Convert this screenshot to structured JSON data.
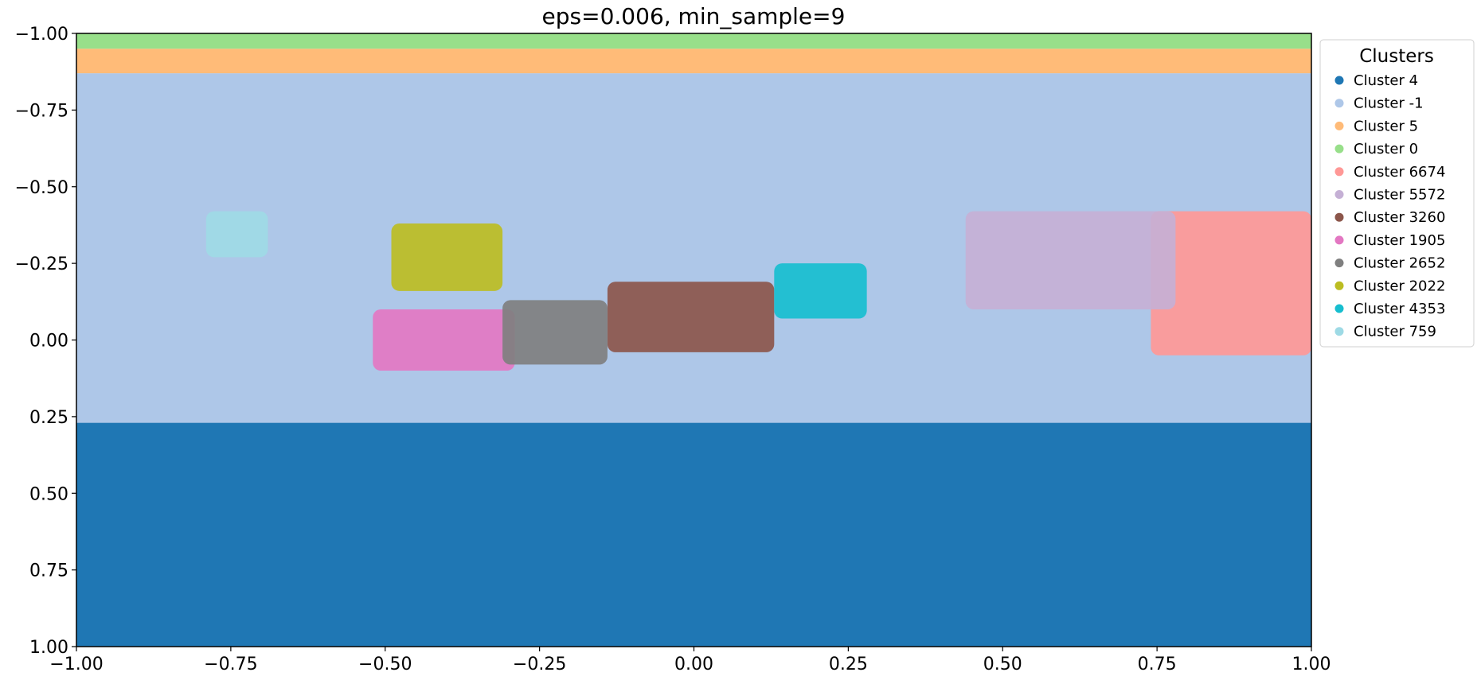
{
  "chart_data": {
    "type": "scatter",
    "title": "eps=0.006, min_sample=9",
    "xlabel": "",
    "ylabel": "",
    "xlim": [
      -1.0,
      1.0
    ],
    "ylim": [
      -1.0,
      1.0
    ],
    "y_inverted": true,
    "grid": false,
    "x_ticks": [
      -1.0,
      -0.75,
      -0.5,
      -0.25,
      0.0,
      0.25,
      0.5,
      0.75,
      1.0
    ],
    "x_tick_labels": [
      "−1.00",
      "−0.75",
      "−0.50",
      "−0.25",
      "0.00",
      "0.25",
      "0.50",
      "0.75",
      "1.00"
    ],
    "y_ticks": [
      -1.0,
      -0.75,
      -0.5,
      -0.25,
      0.0,
      0.25,
      0.5,
      0.75,
      1.0
    ],
    "y_tick_labels": [
      "−1.00",
      "−0.75",
      "−0.50",
      "−0.25",
      "0.00",
      "0.25",
      "0.50",
      "0.75",
      "1.00"
    ],
    "legend": {
      "title": "Clusters",
      "placement": "outside-right-top"
    },
    "series": [
      {
        "name": "Cluster 4",
        "color": "#1f77b4",
        "regions": [
          [
            -1.0,
            0.27,
            1.0,
            1.0
          ]
        ]
      },
      {
        "name": "Cluster -1",
        "color": "#aec7e8",
        "regions": [
          [
            -1.0,
            -0.87,
            1.0,
            0.27
          ]
        ]
      },
      {
        "name": "Cluster 5",
        "color": "#ffbb78",
        "regions": [
          [
            -1.0,
            -0.95,
            1.0,
            -0.87
          ]
        ]
      },
      {
        "name": "Cluster 0",
        "color": "#98df8a",
        "regions": [
          [
            -1.0,
            -1.0,
            1.0,
            -0.95
          ]
        ]
      },
      {
        "name": "Cluster 6674",
        "color": "#ff9896",
        "regions": [
          [
            0.74,
            -0.42,
            1.0,
            0.05
          ]
        ]
      },
      {
        "name": "Cluster 5572",
        "color": "#c5b0d5",
        "regions": [
          [
            0.44,
            -0.42,
            0.78,
            -0.1
          ]
        ]
      },
      {
        "name": "Cluster 3260",
        "color": "#8c564b",
        "regions": [
          [
            -0.14,
            -0.19,
            0.13,
            0.04
          ]
        ]
      },
      {
        "name": "Cluster 1905",
        "color": "#e377c2",
        "regions": [
          [
            -0.52,
            -0.1,
            -0.29,
            0.1
          ]
        ]
      },
      {
        "name": "Cluster 2652",
        "color": "#7f7f7f",
        "regions": [
          [
            -0.31,
            -0.13,
            -0.14,
            0.08
          ]
        ]
      },
      {
        "name": "Cluster 2022",
        "color": "#bcbd22",
        "regions": [
          [
            -0.49,
            -0.38,
            -0.31,
            -0.16
          ]
        ]
      },
      {
        "name": "Cluster 4353",
        "color": "#17becf",
        "regions": [
          [
            0.13,
            -0.25,
            0.28,
            -0.07
          ]
        ]
      },
      {
        "name": "Cluster 759",
        "color": "#9edae5",
        "regions": [
          [
            -0.79,
            -0.42,
            -0.69,
            -0.27
          ]
        ]
      }
    ]
  }
}
